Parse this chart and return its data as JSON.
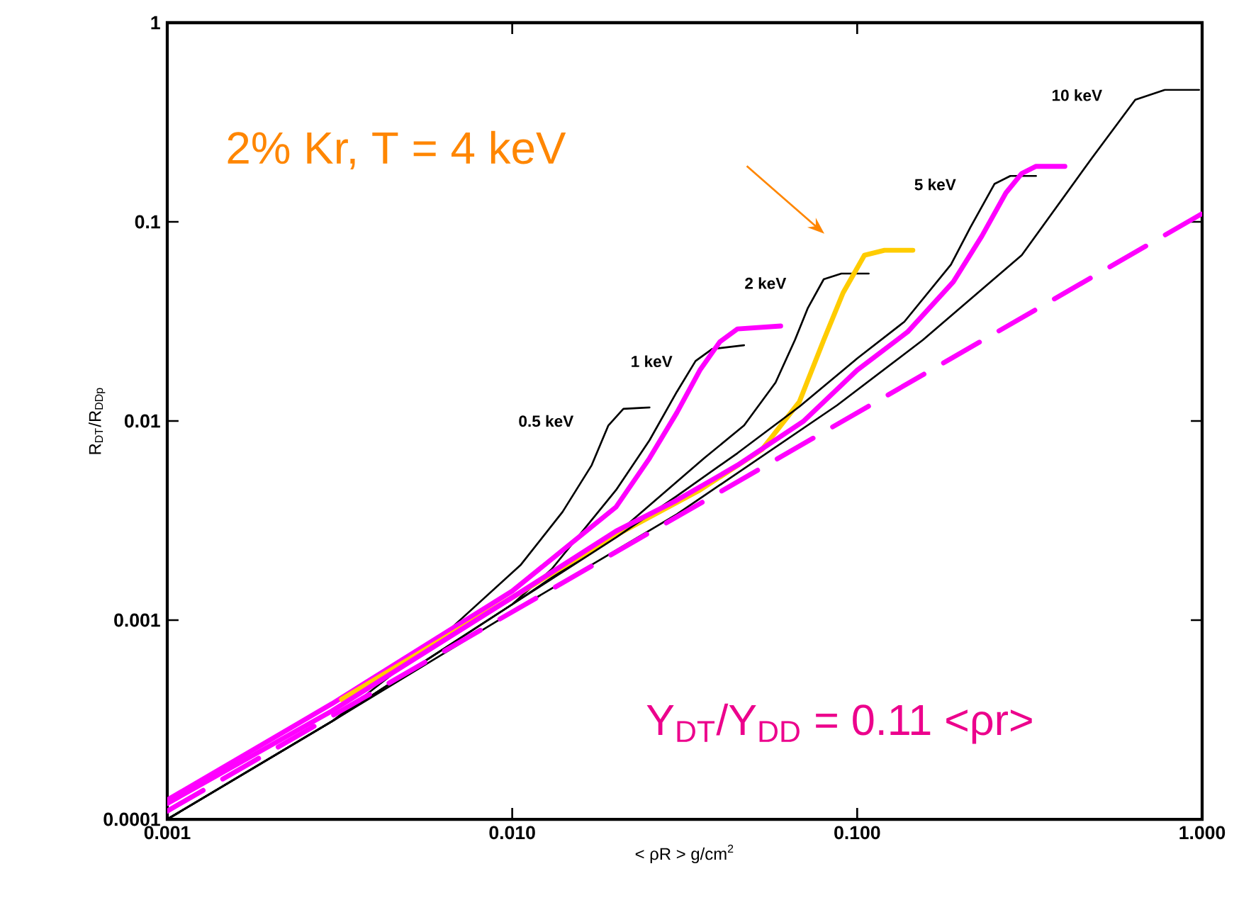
{
  "chart_data": {
    "type": "line",
    "xlabel": "< ρR > g/cm$^{2}$",
    "ylabel": "R$_{DT}$/R$_{DDp}$",
    "log": "xy",
    "xlim": [
      0.001,
      1
    ],
    "ylim": [
      0.0001,
      1
    ],
    "xticks": [
      {
        "value": 0.001,
        "label": "0.001"
      },
      {
        "value": 0.01,
        "label": "0.010"
      },
      {
        "value": 0.1,
        "label": "0.100"
      },
      {
        "value": 1,
        "label": "1.000"
      }
    ],
    "yticks": [
      0.0001,
      0.001,
      0.01,
      0.1,
      1
    ],
    "grid": false,
    "series": [
      {
        "color": "#000000",
        "x": [
          0.001,
          0.003,
          0.0066,
          0.0106,
          0.014,
          0.017,
          0.019,
          0.021,
          0.025
        ],
        "values": [
          0.0001,
          0.00031,
          0.0009,
          0.0019,
          0.0035,
          0.006,
          0.0095,
          0.0115,
          0.0117
        ]
      },
      {
        "color": "#000000",
        "x": [
          0.001,
          0.003,
          0.01,
          0.013,
          0.02,
          0.025,
          0.03,
          0.034,
          0.038,
          0.047
        ],
        "values": [
          0.0001,
          0.00031,
          0.0012,
          0.0018,
          0.0045,
          0.008,
          0.014,
          0.02,
          0.023,
          0.024
        ]
      },
      {
        "color": "#ff00ff",
        "x": [
          0.001,
          0.003,
          0.01,
          0.02,
          0.025,
          0.03,
          0.035,
          0.04,
          0.045,
          0.06
        ],
        "values": [
          0.000125,
          0.00038,
          0.0014,
          0.0037,
          0.0065,
          0.011,
          0.018,
          0.025,
          0.029,
          0.03
        ]
      },
      {
        "color": "#000000",
        "x": [
          0.001,
          0.003,
          0.01,
          0.02,
          0.036,
          0.047,
          0.058,
          0.066,
          0.072,
          0.08,
          0.09,
          0.108
        ],
        "values": [
          0.0001,
          0.00031,
          0.0012,
          0.0027,
          0.0065,
          0.0095,
          0.0156,
          0.0255,
          0.037,
          0.0515,
          0.055,
          0.055
        ]
      },
      {
        "color": "#ffcc00",
        "x": [
          0.0032,
          0.01,
          0.0198,
          0.035,
          0.053,
          0.068,
          0.08,
          0.091,
          0.105,
          0.12,
          0.145
        ],
        "values": [
          0.0004,
          0.0013,
          0.00265,
          0.0045,
          0.0072,
          0.0125,
          0.0255,
          0.044,
          0.068,
          0.072,
          0.072
        ]
      },
      {
        "color": "#000000",
        "x": [
          0.001,
          0.003,
          0.01,
          0.02,
          0.03,
          0.045,
          0.068,
          0.1,
          0.137,
          0.187,
          0.213,
          0.25,
          0.278,
          0.33
        ],
        "values": [
          0.0001,
          0.00031,
          0.0012,
          0.0026,
          0.0042,
          0.0069,
          0.0118,
          0.0206,
          0.0315,
          0.061,
          0.094,
          0.155,
          0.17,
          0.17
        ]
      },
      {
        "color": "#ff00ff",
        "x": [
          0.001,
          0.003,
          0.01,
          0.02,
          0.03,
          0.045,
          0.07,
          0.1,
          0.14,
          0.19,
          0.23,
          0.27,
          0.3,
          0.33,
          0.4
        ],
        "values": [
          0.00012,
          0.00035,
          0.0013,
          0.0028,
          0.004,
          0.006,
          0.01,
          0.018,
          0.028,
          0.05,
          0.085,
          0.14,
          0.175,
          0.19,
          0.19
        ]
      },
      {
        "color": "#000000",
        "x": [
          0.001,
          0.003,
          0.01,
          0.03,
          0.0875,
          0.155,
          0.3,
          0.48,
          0.64,
          0.78,
          0.98
        ],
        "values": [
          0.0001,
          0.00031,
          0.0011,
          0.0034,
          0.012,
          0.0255,
          0.068,
          0.21,
          0.41,
          0.46,
          0.46
        ]
      },
      {
        "color": "#ff00ff",
        "line_style": "dashed",
        "x": [
          0.001,
          1
        ],
        "values": [
          0.00011,
          0.11
        ]
      }
    ],
    "annotations": [
      "2% Kr, T = 4 keV",
      "Y$_{DT}$/Y$_{DD}$ = 0.11 <ρr>",
      "0.5 keV",
      "1 keV",
      "2 keV",
      "5 keV",
      "10 keV"
    ]
  }
}
